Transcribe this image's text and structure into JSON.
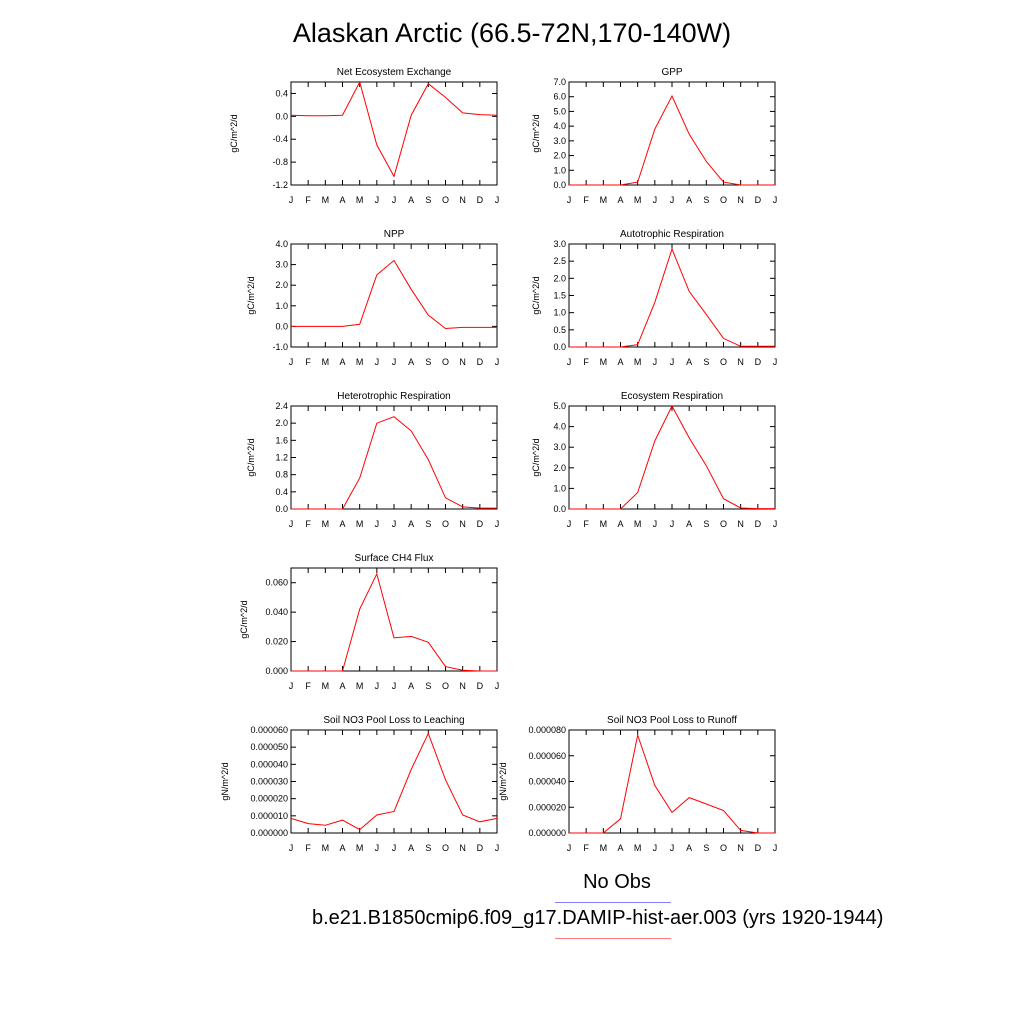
{
  "title": "Alaskan Arctic (66.5-72N,170-140W)",
  "month_labels": [
    "J",
    "F",
    "M",
    "A",
    "M",
    "J",
    "J",
    "A",
    "S",
    "O",
    "N",
    "D",
    "J"
  ],
  "colors": {
    "model_line": "#ff0000",
    "obs_legend": "#7f7fff",
    "case_legend": "#ff7f7f"
  },
  "legend": {
    "obs_label": "No Obs",
    "case_label": "b.e21.B1850cmip6.f09_g17.DAMIP-hist-aer.003 (yrs 1920-1944)"
  },
  "chart_data": [
    {
      "type": "line",
      "title": "Net Ecosystem Exchange",
      "ylabel": "gC/m^2/d",
      "ylim": [
        -1.2,
        0.6
      ],
      "yticks": [
        -1.2,
        -0.8,
        -0.4,
        0.0,
        0.4
      ],
      "ytick_labels": [
        "-1.2",
        "-0.8",
        "-0.4",
        "0.0",
        "0.4"
      ],
      "values": [
        0.02,
        0.01,
        0.01,
        0.02,
        0.6,
        -0.5,
        -1.05,
        0.02,
        0.57,
        0.33,
        0.06,
        0.03,
        0.02
      ]
    },
    {
      "type": "line",
      "title": "GPP",
      "ylabel": "gC/m^2/d",
      "ylim": [
        0,
        7
      ],
      "yticks": [
        0,
        1,
        2,
        3,
        4,
        5,
        6,
        7
      ],
      "ytick_labels": [
        "0.0",
        "1.0",
        "2.0",
        "3.0",
        "4.0",
        "5.0",
        "6.0",
        "7.0"
      ],
      "values": [
        0,
        0,
        0,
        0,
        0.2,
        3.8,
        6.05,
        3.45,
        1.6,
        0.2,
        0,
        0,
        0
      ]
    },
    {
      "type": "line",
      "title": "NPP",
      "ylabel": "gC/m^2/d",
      "ylim": [
        -1,
        4
      ],
      "yticks": [
        -1,
        0,
        1,
        2,
        3,
        4
      ],
      "ytick_labels": [
        "-1.0",
        "0.0",
        "1.0",
        "2.0",
        "3.0",
        "4.0"
      ],
      "values": [
        0,
        0,
        0,
        0,
        0.1,
        2.5,
        3.2,
        1.8,
        0.55,
        -0.1,
        -0.05,
        -0.05,
        -0.05
      ]
    },
    {
      "type": "line",
      "title": "Autotrophic Respiration",
      "ylabel": "gC/m^2/d",
      "ylim": [
        0,
        3
      ],
      "yticks": [
        0,
        0.5,
        1,
        1.5,
        2,
        2.5,
        3
      ],
      "ytick_labels": [
        "0.0",
        "0.5",
        "1.0",
        "1.5",
        "2.0",
        "2.5",
        "3.0"
      ],
      "values": [
        0,
        0,
        0,
        0,
        0.07,
        1.3,
        2.85,
        1.62,
        0.95,
        0.25,
        0.02,
        0.02,
        0.02
      ]
    },
    {
      "type": "line",
      "title": "Heterotrophic Respiration",
      "ylabel": "gC/m^2/d",
      "ylim": [
        0,
        2.4
      ],
      "yticks": [
        0,
        0.4,
        0.8,
        1.2,
        1.6,
        2.0,
        2.4
      ],
      "ytick_labels": [
        "0.0",
        "0.4",
        "0.8",
        "1.2",
        "1.6",
        "2.0",
        "2.4"
      ],
      "values": [
        0,
        0,
        0,
        0,
        0.72,
        2.0,
        2.15,
        1.82,
        1.15,
        0.26,
        0.05,
        0.02,
        0.02
      ]
    },
    {
      "type": "line",
      "title": "Ecosystem Respiration",
      "ylabel": "gC/m^2/d",
      "ylim": [
        0,
        5
      ],
      "yticks": [
        0,
        1,
        2,
        3,
        4,
        5
      ],
      "ytick_labels": [
        "0.0",
        "1.0",
        "2.0",
        "3.0",
        "4.0",
        "5.0"
      ],
      "values": [
        0,
        0,
        0,
        0,
        0.8,
        3.3,
        5.0,
        3.45,
        2.1,
        0.5,
        0.05,
        0.02,
        0.02
      ]
    },
    {
      "type": "line",
      "title": "Surface CH4 Flux",
      "ylabel": "gC/m^2/d",
      "ylim": [
        0,
        0.07
      ],
      "yticks": [
        0,
        0.02,
        0.04,
        0.06
      ],
      "ytick_labels": [
        "0.000",
        "0.020",
        "0.040",
        "0.060"
      ],
      "values": [
        0,
        0,
        0,
        0,
        0.042,
        0.066,
        0.0225,
        0.0235,
        0.0195,
        0.003,
        0.0005,
        0,
        0
      ]
    },
    {
      "type": "line",
      "title": "Soil NO3 Pool Loss to Leaching",
      "ylabel": "gN/m^2/d",
      "ylim": [
        0,
        6e-05
      ],
      "yticks": [
        0,
        1e-05,
        2e-05,
        3e-05,
        4e-05,
        5e-05,
        6e-05
      ],
      "ytick_labels": [
        "0.000000",
        "0.000010",
        "0.000020",
        "0.000030",
        "0.000040",
        "0.000050",
        "0.000060"
      ],
      "values": [
        8.5e-06,
        5.5e-06,
        4.5e-06,
        7.5e-06,
        2e-06,
        1.05e-05,
        1.25e-05,
        3.7e-05,
        5.8e-05,
        3.1e-05,
        1.05e-05,
        6.5e-06,
        8.5e-06
      ]
    },
    {
      "type": "line",
      "title": "Soil NO3 Pool Loss to Runoff",
      "ylabel": "gN/m^2/d",
      "ylim": [
        0,
        8e-05
      ],
      "yticks": [
        0,
        2e-05,
        4e-05,
        6e-05,
        8e-05
      ],
      "ytick_labels": [
        "0.000000",
        "0.000020",
        "0.000040",
        "0.000060",
        "0.000080"
      ],
      "values": [
        0,
        0,
        0,
        1.1e-05,
        7.6e-05,
        3.7e-05,
        1.6e-05,
        2.75e-05,
        2.25e-05,
        1.75e-05,
        2e-06,
        0,
        0
      ]
    }
  ]
}
